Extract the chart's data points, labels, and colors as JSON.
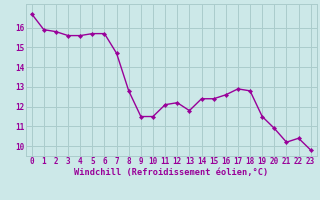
{
  "x": [
    0,
    1,
    2,
    3,
    4,
    5,
    6,
    7,
    8,
    9,
    10,
    11,
    12,
    13,
    14,
    15,
    16,
    17,
    18,
    19,
    20,
    21,
    22,
    23
  ],
  "y": [
    16.7,
    15.9,
    15.8,
    15.6,
    15.6,
    15.7,
    15.7,
    14.7,
    12.8,
    11.5,
    11.5,
    12.1,
    12.2,
    11.8,
    12.4,
    12.4,
    12.6,
    12.9,
    12.8,
    11.5,
    10.9,
    10.2,
    10.4,
    9.8
  ],
  "line_color": "#990099",
  "marker": "D",
  "marker_size": 2.2,
  "linewidth": 1.0,
  "xlabel": "Windchill (Refroidissement éolien,°C)",
  "xlabel_color": "#990099",
  "background_color": "#cce8e8",
  "grid_color": "#aacccc",
  "tick_color": "#990099",
  "xlim": [
    -0.5,
    23.5
  ],
  "ylim": [
    9.5,
    17.2
  ],
  "yticks": [
    10,
    11,
    12,
    13,
    14,
    15,
    16
  ],
  "xticks": [
    0,
    1,
    2,
    3,
    4,
    5,
    6,
    7,
    8,
    9,
    10,
    11,
    12,
    13,
    14,
    15,
    16,
    17,
    18,
    19,
    20,
    21,
    22,
    23
  ],
  "tick_fontsize": 5.5,
  "xlabel_fontsize": 6.2
}
